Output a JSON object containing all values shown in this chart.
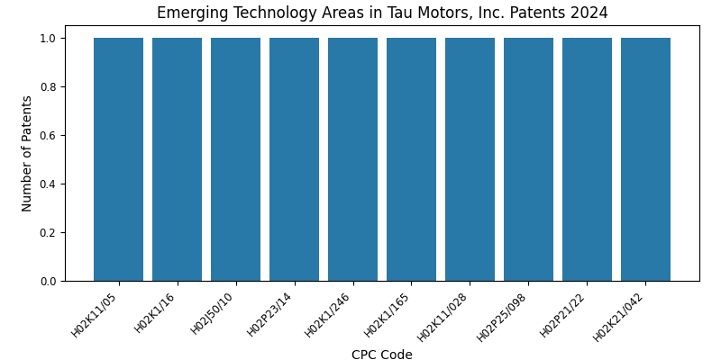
{
  "title": "Emerging Technology Areas in Tau Motors, Inc. Patents 2024",
  "xlabel": "CPC Code",
  "ylabel": "Number of Patents",
  "categories": [
    "H02K11/05",
    "H02K1/16",
    "H02J50/10",
    "H02P23/14",
    "H02K1/246",
    "H02K1/165",
    "H02K11/028",
    "H02P25/098",
    "H02P21/22",
    "H02K21/042"
  ],
  "values": [
    1,
    1,
    1,
    1,
    1,
    1,
    1,
    1,
    1,
    1
  ],
  "bar_color": "#2878a8",
  "figsize": [
    8.0,
    4.0
  ],
  "dpi": 100,
  "ylim": [
    0,
    1.05
  ],
  "yticks": [
    0.0,
    0.2,
    0.4,
    0.6,
    0.8,
    1.0
  ],
  "bar_width": 0.85,
  "title_fontsize": 12,
  "label_fontsize": 10,
  "tick_fontsize": 8.5
}
